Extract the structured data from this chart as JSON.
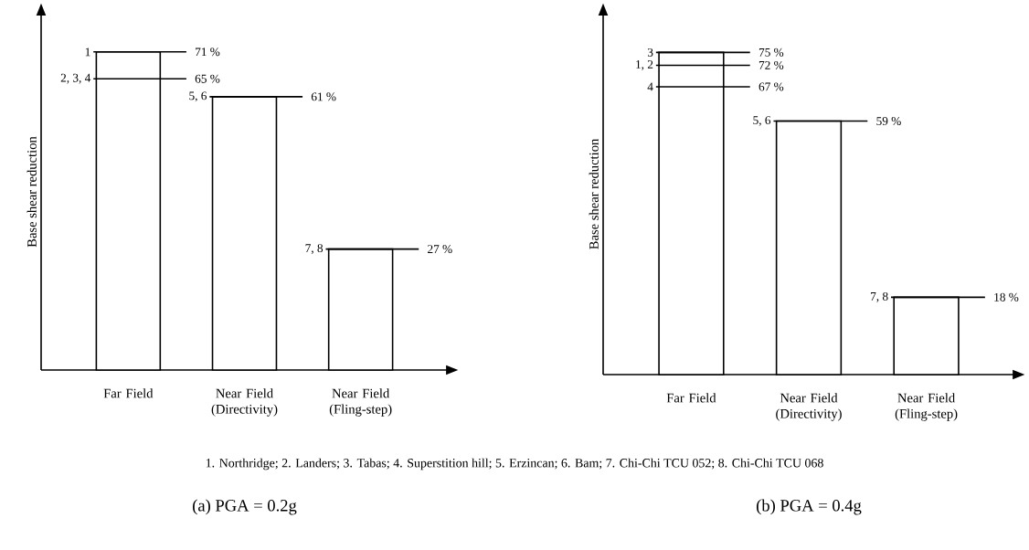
{
  "chart_data": [
    {
      "type": "bar",
      "title": "(a)  PGA = 0.2g",
      "ylabel": "Base shear reduction",
      "categories": [
        "Far Field",
        "Near Field (Directivity)",
        "Near Field (Fling-step)"
      ],
      "values": [
        71,
        61,
        27
      ],
      "value_labels": [
        "71 %",
        "61 %",
        "27 %"
      ],
      "color": "#ffffff",
      "tick_labels": "x",
      "ref_lines": [
        {
          "axis": "y",
          "value": 65,
          "label": "65 %"
        }
      ],
      "annotations": [
        "1",
        "5, 6",
        "7, 8",
        "2, 3, 4",
        "1. Northridge; 2. Landers; 3. Tabas; 4. Superstition hill; 5. Erzincan; 6. Bam; 7. Chi-Chi TCU 052; 8. Chi-Chi TCU 068"
      ]
    },
    {
      "type": "bar",
      "title": "(b)  PGA = 0.4g",
      "ylabel": "Base shear reduction",
      "categories": [
        "Far Field",
        "Near Field (Directivity)",
        "Near Field (Fling-step)"
      ],
      "values": [
        75,
        59,
        18
      ],
      "value_labels": [
        "75 %",
        "59 %",
        "18 %"
      ],
      "color": "#ffffff",
      "tick_labels": "x",
      "ref_lines": [
        {
          "axis": "y",
          "value": 72,
          "label": "72 %"
        },
        {
          "axis": "y",
          "value": 67,
          "label": "67 %"
        }
      ],
      "annotations": [
        "3",
        "5, 6",
        "7, 8",
        "1, 2",
        "4"
      ]
    }
  ]
}
